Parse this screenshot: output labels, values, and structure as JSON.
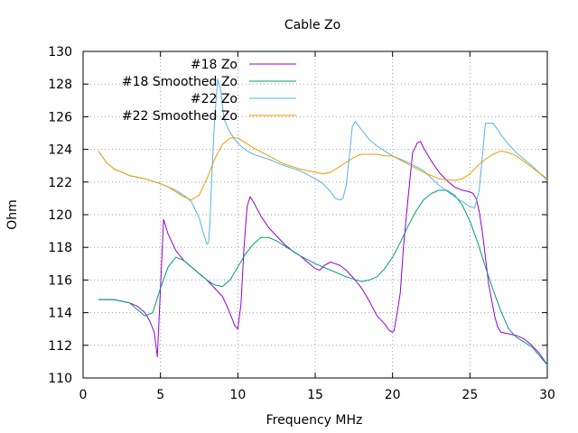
{
  "chart_data": {
    "type": "line",
    "title": "Cable Zo",
    "xlabel": "Frequency MHz",
    "ylabel": "Ohm",
    "xlim": [
      0,
      30
    ],
    "ylim": [
      110,
      130
    ],
    "xticks": [
      0,
      5,
      10,
      15,
      20,
      25,
      30
    ],
    "yticks": [
      110,
      112,
      114,
      116,
      118,
      120,
      122,
      124,
      126,
      128,
      130
    ],
    "grid": true,
    "legend_position": "top-right",
    "series": [
      {
        "name": "#18 Zo",
        "color": "#9400d3",
        "x": [
          1,
          2,
          3,
          3.5,
          4,
          4.3,
          4.6,
          4.8,
          5,
          5.2,
          5.5,
          6,
          6.5,
          7,
          7.5,
          8,
          8.5,
          9,
          9.3,
          9.6,
          9.8,
          10,
          10.2,
          10.4,
          10.6,
          10.8,
          11,
          11.5,
          12,
          12.5,
          13,
          13.5,
          14,
          14.5,
          15,
          15.3,
          15.6,
          16,
          16.3,
          16.6,
          17,
          17.5,
          18,
          18.5,
          19,
          19.5,
          19.8,
          20,
          20.1,
          20.3,
          20.5,
          20.7,
          21,
          21.3,
          21.6,
          21.8,
          22,
          22.5,
          23,
          23.5,
          24,
          24.5,
          25,
          25.2,
          25.4,
          25.6,
          25.8,
          26,
          26.2,
          26.4,
          26.6,
          26.8,
          27,
          27.5,
          28,
          28.5,
          29,
          29.5,
          30
        ],
        "y": [
          114.8,
          114.8,
          114.6,
          114.4,
          114.0,
          113.5,
          112.8,
          111.3,
          115.5,
          119.7,
          118.8,
          117.8,
          117.2,
          116.8,
          116.4,
          116.0,
          115.5,
          115.0,
          114.4,
          113.7,
          113.2,
          113.0,
          114.5,
          118.0,
          120.5,
          121.1,
          120.8,
          119.9,
          119.2,
          118.7,
          118.2,
          117.8,
          117.5,
          117.1,
          116.7,
          116.6,
          116.9,
          117.1,
          117.0,
          116.9,
          116.6,
          116.1,
          115.5,
          114.7,
          113.8,
          113.3,
          112.9,
          112.8,
          112.9,
          114.0,
          115.2,
          118.0,
          121.0,
          123.8,
          124.4,
          124.5,
          124.1,
          123.3,
          122.6,
          122.1,
          121.7,
          121.5,
          121.4,
          121.3,
          121.0,
          120.2,
          119.0,
          117.4,
          115.8,
          114.8,
          113.8,
          113.1,
          112.8,
          112.7,
          112.6,
          112.4,
          112.0,
          111.5,
          110.8
        ]
      },
      {
        "name": "#18 Smoothed Zo",
        "color": "#009e73",
        "x": [
          1,
          2,
          3,
          4,
          4.5,
          5,
          5.5,
          6,
          6.5,
          7,
          7.5,
          8,
          8.5,
          9,
          9.5,
          10,
          10.5,
          11,
          11.5,
          12,
          12.5,
          13,
          13.5,
          14,
          15,
          16,
          17,
          18,
          18.5,
          19,
          19.5,
          20,
          20.5,
          21,
          21.5,
          22,
          22.5,
          23,
          23.5,
          24,
          24.5,
          25,
          25.5,
          26,
          26.5,
          27,
          27.5,
          28,
          29,
          30
        ],
        "y": [
          114.8,
          114.8,
          114.6,
          113.8,
          114.0,
          115.5,
          116.8,
          117.4,
          117.2,
          116.8,
          116.4,
          116.0,
          115.7,
          115.6,
          116.0,
          116.8,
          117.6,
          118.2,
          118.6,
          118.6,
          118.4,
          118.1,
          117.8,
          117.5,
          117.0,
          116.6,
          116.2,
          115.9,
          116.0,
          116.2,
          116.7,
          117.4,
          118.3,
          119.3,
          120.2,
          120.9,
          121.3,
          121.5,
          121.5,
          121.2,
          120.6,
          119.6,
          118.3,
          116.8,
          115.4,
          114.1,
          113.0,
          112.5,
          111.9,
          110.8
        ]
      },
      {
        "name": "#22 Zo",
        "color": "#56b4e9",
        "x": [
          1,
          1.5,
          2,
          3,
          4,
          5,
          5.5,
          6,
          6.5,
          7,
          7.5,
          7.8,
          8,
          8.1,
          8.2,
          8.3,
          8.5,
          8.7,
          8.9,
          9.1,
          9.4,
          9.8,
          10.2,
          10.6,
          11,
          12,
          13,
          14,
          15,
          15.5,
          16,
          16.3,
          16.6,
          16.8,
          17,
          17.2,
          17.4,
          17.6,
          18,
          18.5,
          19,
          19.5,
          20,
          21,
          22,
          23,
          24,
          24.5,
          25,
          25.3,
          25.6,
          25.8,
          26,
          26.2,
          26.5,
          26.8,
          27,
          27.5,
          28,
          29,
          30
        ],
        "y": [
          123.9,
          123.2,
          122.8,
          122.4,
          122.2,
          121.9,
          121.7,
          121.5,
          121.2,
          120.8,
          119.8,
          118.8,
          118.2,
          118.3,
          119.5,
          122.0,
          125.8,
          128.3,
          127.6,
          125.9,
          125.2,
          124.6,
          124.2,
          123.9,
          123.7,
          123.4,
          123.0,
          122.7,
          122.2,
          121.9,
          121.4,
          121.0,
          120.9,
          121.0,
          121.8,
          123.5,
          125.4,
          125.7,
          125.2,
          124.6,
          124.2,
          123.9,
          123.6,
          123.2,
          122.7,
          121.8,
          121.1,
          120.8,
          120.5,
          120.4,
          121.5,
          123.5,
          125.6,
          125.6,
          125.6,
          125.2,
          124.9,
          124.3,
          123.8,
          123.0,
          122.1
        ]
      },
      {
        "name": "#22 Smoothed Zo",
        "color": "#e69f00",
        "x": [
          1,
          1.5,
          2,
          3,
          4,
          5,
          5.5,
          6,
          6.5,
          7,
          7.5,
          8,
          8.5,
          9,
          9.5,
          10,
          10.5,
          11,
          12,
          13,
          14,
          15,
          15.5,
          16,
          16.5,
          17,
          17.5,
          18,
          18.5,
          19,
          19.5,
          20,
          21,
          22,
          23,
          24,
          24.5,
          25,
          25.5,
          26,
          26.5,
          27,
          27.5,
          28,
          29,
          30
        ],
        "y": [
          123.9,
          123.2,
          122.8,
          122.4,
          122.2,
          121.9,
          121.7,
          121.4,
          121.1,
          120.9,
          121.2,
          122.2,
          123.4,
          124.3,
          124.7,
          124.7,
          124.4,
          124.1,
          123.6,
          123.1,
          122.8,
          122.6,
          122.5,
          122.6,
          122.9,
          123.2,
          123.5,
          123.7,
          123.7,
          123.7,
          123.6,
          123.6,
          123.1,
          122.6,
          122.2,
          122.1,
          122.2,
          122.5,
          123.0,
          123.4,
          123.7,
          123.9,
          123.8,
          123.6,
          122.9,
          122.2
        ]
      }
    ]
  }
}
